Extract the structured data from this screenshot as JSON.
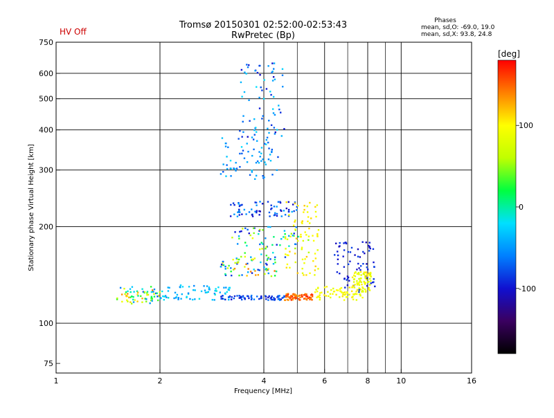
{
  "header": {
    "status_text": "HV Off",
    "status_color": "#cc0000",
    "title_line1": "Tromsø 20150301 02:52:00-02:53:43",
    "title_line2": "RwPretec (Bp)",
    "stats_heading": "Phases",
    "stats_line1": "mean, sd,O: -69.0, 19.0",
    "stats_line2": "mean, sd,X:  93.8, 24.8"
  },
  "colorbar": {
    "unit_label": "[deg]",
    "ticks": [
      {
        "label": "100",
        "value": 100
      },
      {
        "label": "0",
        "value": 0
      },
      {
        "label": "-100",
        "value": -100
      }
    ],
    "range": [
      -180,
      180
    ],
    "stops": [
      "#000000",
      "#3a0060",
      "#1010d0",
      "#0080ff",
      "#00e0ff",
      "#00ff40",
      "#c0ff00",
      "#ffff00",
      "#ff8000",
      "#ff0000"
    ]
  },
  "chart_data": {
    "type": "scatter",
    "title": "Tromsø 20150301 02:52:00-02:53:43",
    "subtitle": "RwPretec (Bp)",
    "xlabel": "Frequency [MHz]",
    "ylabel": "Stationary phase Virtual Height [km]",
    "x_scale": "log",
    "y_scale": "log",
    "xlim": [
      1,
      16
    ],
    "ylim": [
      70,
      750
    ],
    "x_ticks": [
      {
        "label": "1",
        "value": 1
      },
      {
        "label": "2",
        "value": 2
      },
      {
        "label": "4",
        "value": 4
      },
      {
        "label": "6",
        "value": 6
      },
      {
        "label": "8",
        "value": 8
      },
      {
        "label": "10",
        "value": 10
      },
      {
        "label": "16",
        "value": 16
      }
    ],
    "x_grid": [
      2,
      4,
      6,
      8,
      10
    ],
    "x_minor_grid": [
      5,
      7,
      9
    ],
    "y_ticks": [
      {
        "label": "750",
        "value": 750
      },
      {
        "label": "600",
        "value": 600
      },
      {
        "label": "500",
        "value": 500
      },
      {
        "label": "400",
        "value": 400
      },
      {
        "label": "300",
        "value": 300
      },
      {
        "label": "200",
        "value": 200
      },
      {
        "label": "100",
        "value": 100
      },
      {
        "label": "75",
        "value": 75
      }
    ],
    "y_grid": [
      600,
      500,
      400,
      300,
      200,
      100
    ],
    "grid": true,
    "color_by": "phase [deg]",
    "clusters": [
      {
        "x": [
          1.5,
          2.0
        ],
        "y": [
          115,
          130
        ],
        "phase": [
          -80,
          140
        ]
      },
      {
        "x": [
          2.0,
          3.2
        ],
        "y": [
          118,
          132
        ],
        "phase": [
          -60,
          -10
        ]
      },
      {
        "x": [
          3.0,
          4.6
        ],
        "y": [
          118,
          122
        ],
        "phase": [
          -110,
          -60
        ]
      },
      {
        "x": [
          4.6,
          5.6
        ],
        "y": [
          118,
          124
        ],
        "phase": [
          130,
          170
        ]
      },
      {
        "x": [
          5.6,
          7.8
        ],
        "y": [
          118,
          130
        ],
        "phase": [
          80,
          110
        ]
      },
      {
        "x": [
          3.0,
          4.4
        ],
        "y": [
          140,
          160
        ],
        "phase": [
          -100,
          150
        ]
      },
      {
        "x": [
          3.2,
          5.4
        ],
        "y": [
          160,
          200
        ],
        "phase": [
          -110,
          100
        ]
      },
      {
        "x": [
          3.2,
          5.0
        ],
        "y": [
          215,
          240
        ],
        "phase": [
          -110,
          -40
        ]
      },
      {
        "x": [
          4.6,
          5.8
        ],
        "y": [
          140,
          240
        ],
        "phase": [
          80,
          120
        ]
      },
      {
        "x": [
          3.0,
          4.4
        ],
        "y": [
          280,
          380
        ],
        "phase": [
          -80,
          -20
        ]
      },
      {
        "x": [
          3.4,
          4.6
        ],
        "y": [
          380,
          650
        ],
        "phase": [
          -110,
          -20
        ]
      },
      {
        "x": [
          6.4,
          8.4
        ],
        "y": [
          125,
          180
        ],
        "phase": [
          -110,
          -80
        ]
      },
      {
        "x": [
          7.2,
          8.2
        ],
        "y": [
          125,
          145
        ],
        "phase": [
          70,
          110
        ]
      }
    ]
  }
}
